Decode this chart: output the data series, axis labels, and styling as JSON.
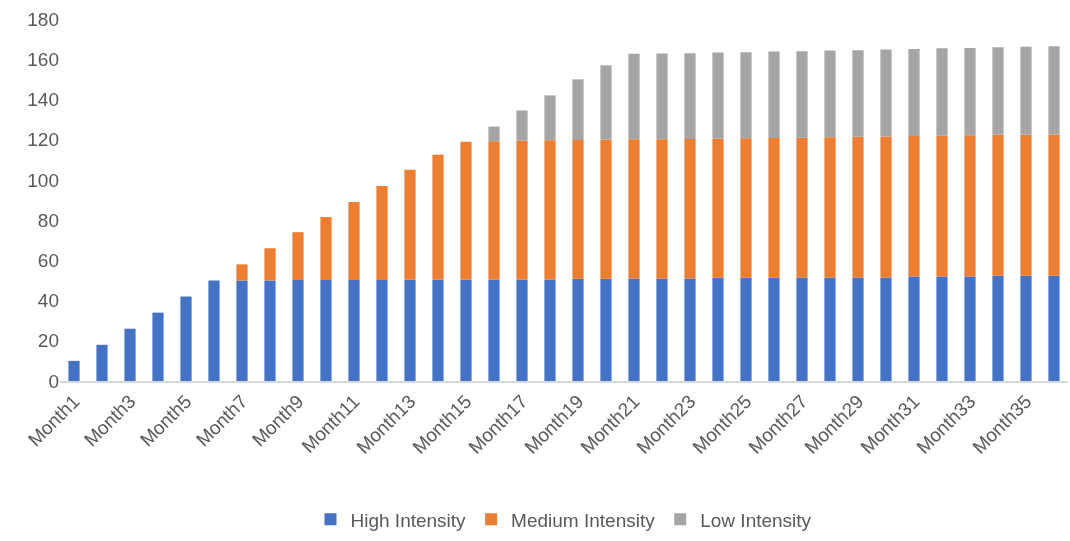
{
  "chart_data": {
    "type": "bar",
    "stacked": true,
    "categories": [
      "Month1",
      null,
      "Month3",
      null,
      "Month5",
      null,
      "Month7",
      null,
      "Month9",
      null,
      "Month11",
      null,
      "Month13",
      null,
      "Month15",
      null,
      "Month17",
      null,
      "Month19",
      null,
      "Month21",
      null,
      "Month23",
      null,
      "Month25",
      null,
      "Month27",
      null,
      "Month29",
      null,
      "Month31",
      null,
      "Month33",
      null,
      "Month35",
      null
    ],
    "series": [
      {
        "name": "High Intensity",
        "color": "#4472c4",
        "values": [
          10,
          18,
          26,
          34,
          42,
          50,
          50,
          50,
          50.2,
          50.2,
          50.2,
          50.2,
          50.4,
          50.4,
          50.4,
          50.5,
          50.5,
          50.5,
          50.8,
          50.8,
          51,
          51,
          51,
          51.3,
          51.3,
          51.3,
          51.5,
          51.5,
          51.5,
          51.5,
          52,
          52,
          52,
          52.3,
          52.3,
          52.3
        ]
      },
      {
        "name": "Medium Intensity",
        "color": "#ed7d31",
        "values": [
          null,
          null,
          null,
          null,
          null,
          null,
          8,
          16,
          23.8,
          31.3,
          38.8,
          46.8,
          54.6,
          62.1,
          68.6,
          68.7,
          69,
          69.2,
          69,
          69.2,
          69.2,
          69.2,
          69.3,
          69.2,
          69.4,
          69.5,
          69.5,
          69.7,
          69.9,
          70.1,
          69.8,
          70,
          70.2,
          70.1,
          70.2,
          70.3
        ]
      },
      {
        "name": "Low Intensity",
        "color": "#a5a5a5",
        "values": [
          null,
          null,
          null,
          null,
          null,
          null,
          null,
          null,
          null,
          null,
          null,
          null,
          null,
          null,
          null,
          7.3,
          15,
          22.3,
          30.2,
          37,
          42.5,
          42.7,
          42.7,
          42.8,
          42.8,
          43,
          43,
          43.1,
          43.1,
          43.2,
          43.3,
          43.4,
          43.4,
          43.5,
          43.7,
          43.9
        ]
      }
    ],
    "ylim": [
      0,
      180
    ],
    "yticks": [
      0,
      20,
      40,
      60,
      80,
      100,
      120,
      140,
      160,
      180
    ],
    "grid": false,
    "legend": "bottom"
  }
}
